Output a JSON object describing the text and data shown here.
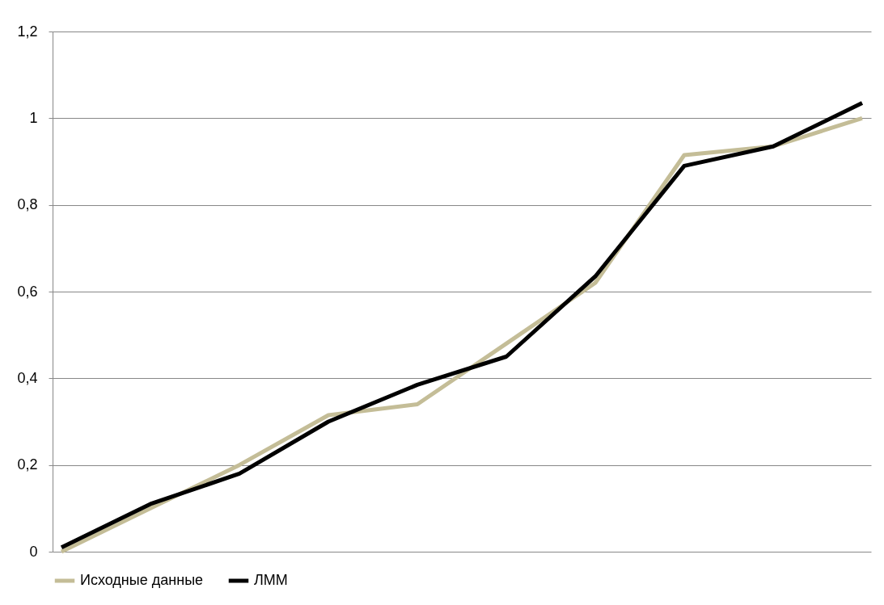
{
  "chart_data": {
    "type": "line",
    "categories": [
      null,
      null,
      null,
      null,
      null,
      null,
      null,
      null,
      null,
      null
    ],
    "series": [
      {
        "name": "Исходные данные",
        "color": "#c4bd97",
        "values": [
          0,
          0.1,
          0.2,
          0.315,
          0.34,
          0.48,
          0.62,
          0.915,
          0.935,
          1.0
        ]
      },
      {
        "name": "ЛММ",
        "color": "#000000",
        "values": [
          0.01,
          0.11,
          0.18,
          0.3,
          0.385,
          0.45,
          0.635,
          0.89,
          0.935,
          1.035
        ]
      }
    ],
    "ylim": [
      0,
      1.2
    ],
    "yticks": [
      0,
      {
        "value": 0.2,
        "label": "0,2"
      },
      {
        "value": 0.4,
        "label": "0,4"
      },
      {
        "value": 0.6,
        "label": "0,6"
      },
      {
        "value": 0.8,
        "label": "0,8"
      },
      1,
      {
        "value": 1.2,
        "label": "1,2"
      }
    ],
    "grid": "y",
    "legend": "bottom",
    "line_style": "solid"
  }
}
